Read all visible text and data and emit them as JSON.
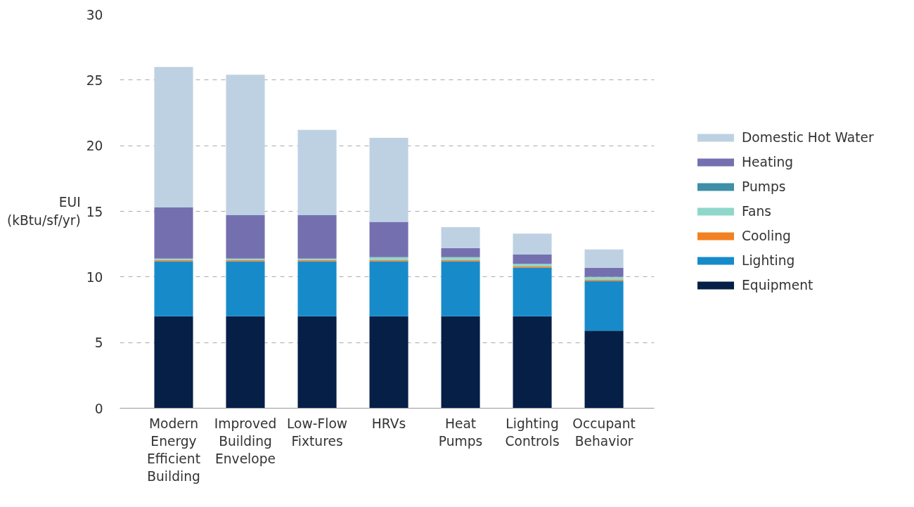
{
  "chart_data": {
    "type": "bar",
    "stacked": true,
    "ylabel": "EUI (kBtu/sf/yr)",
    "categories": [
      "Modern Energy Efficient Building",
      "Improved Building Envelope",
      "Low-Flow Fixtures",
      "HRVs",
      "Heat Pumps",
      "Lighting Controls",
      "Occupant Behavior"
    ],
    "series": [
      {
        "name": "Equipment",
        "color": "#061f47",
        "values": [
          7.0,
          7.0,
          7.0,
          7.0,
          7.0,
          7.0,
          5.9
        ]
      },
      {
        "name": "Lighting",
        "color": "#178bca",
        "values": [
          4.2,
          4.2,
          4.2,
          4.2,
          4.2,
          3.7,
          3.8
        ]
      },
      {
        "name": "Cooling",
        "color": "#f28123",
        "values": [
          0.1,
          0.1,
          0.1,
          0.1,
          0.1,
          0.1,
          0.1
        ]
      },
      {
        "name": "Fans",
        "color": "#8fd7cb",
        "values": [
          0.1,
          0.1,
          0.1,
          0.2,
          0.2,
          0.2,
          0.2
        ]
      },
      {
        "name": "Pumps",
        "color": "#3f8fa8",
        "values": [
          0,
          0,
          0,
          0,
          0,
          0,
          0
        ]
      },
      {
        "name": "Heating",
        "color": "#7470b0",
        "values": [
          3.9,
          3.3,
          3.3,
          2.7,
          0.7,
          0.7,
          0.7
        ]
      },
      {
        "name": "Domestic Hot Water",
        "color": "#bdd1e2",
        "values": [
          10.7,
          10.7,
          6.5,
          6.4,
          1.6,
          1.6,
          1.4
        ]
      }
    ],
    "ylim": [
      0,
      30
    ],
    "yticks": [
      0,
      5,
      10,
      15,
      20,
      25,
      30
    ],
    "grid": "y",
    "legend": "right"
  }
}
